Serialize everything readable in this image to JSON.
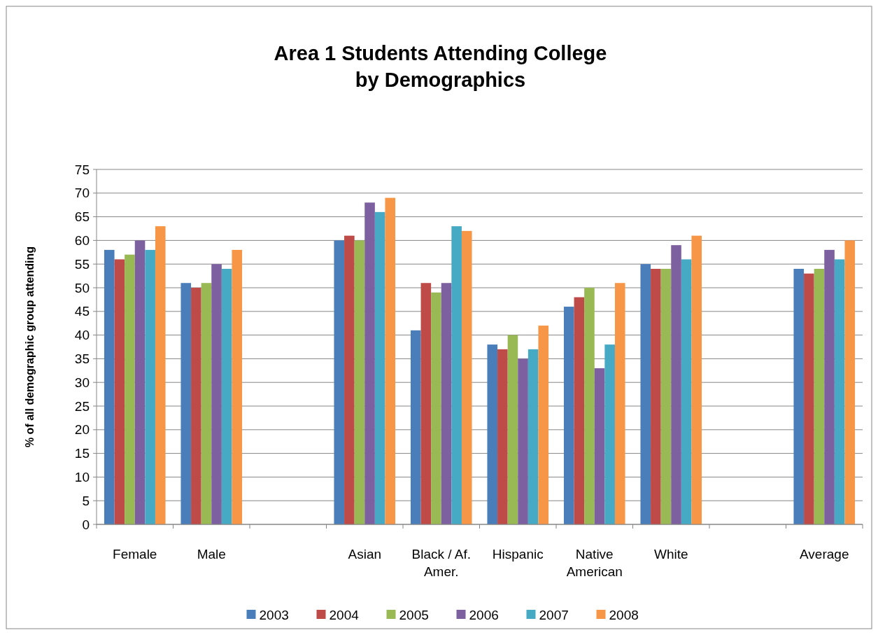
{
  "chart_data": {
    "type": "bar",
    "title": "Area 1 Students Attending College\nby Demographics",
    "ylabel": "% of all demographic group attending",
    "categories": [
      "Female",
      "Male",
      null,
      "Asian",
      "Black / Af. Amer.",
      "Hispanic",
      "Native American",
      "White",
      null,
      "Average"
    ],
    "series": [
      {
        "name": "2003",
        "color": "#4a7ebb",
        "values": [
          58,
          51,
          null,
          60,
          41,
          38,
          46,
          55,
          null,
          54
        ]
      },
      {
        "name": "2004",
        "color": "#be4b48",
        "values": [
          56,
          50,
          null,
          61,
          51,
          37,
          48,
          54,
          null,
          53
        ]
      },
      {
        "name": "2005",
        "color": "#98b954",
        "values": [
          57,
          51,
          null,
          60,
          49,
          40,
          50,
          54,
          null,
          54
        ]
      },
      {
        "name": "2006",
        "color": "#7d60a0",
        "values": [
          60,
          55,
          null,
          68,
          51,
          35,
          33,
          59,
          null,
          58
        ]
      },
      {
        "name": "2007",
        "color": "#46aac5",
        "values": [
          58,
          54,
          null,
          66,
          63,
          37,
          38,
          56,
          null,
          56
        ]
      },
      {
        "name": "2008",
        "color": "#f79646",
        "values": [
          63,
          58,
          null,
          69,
          62,
          42,
          51,
          61,
          null,
          60
        ]
      }
    ],
    "ylim": [
      0,
      75
    ],
    "yticks": [
      0,
      5,
      10,
      15,
      20,
      25,
      30,
      35,
      40,
      45,
      50,
      55,
      60,
      65,
      70,
      75
    ],
    "grid": "y",
    "legend": "bottom"
  }
}
